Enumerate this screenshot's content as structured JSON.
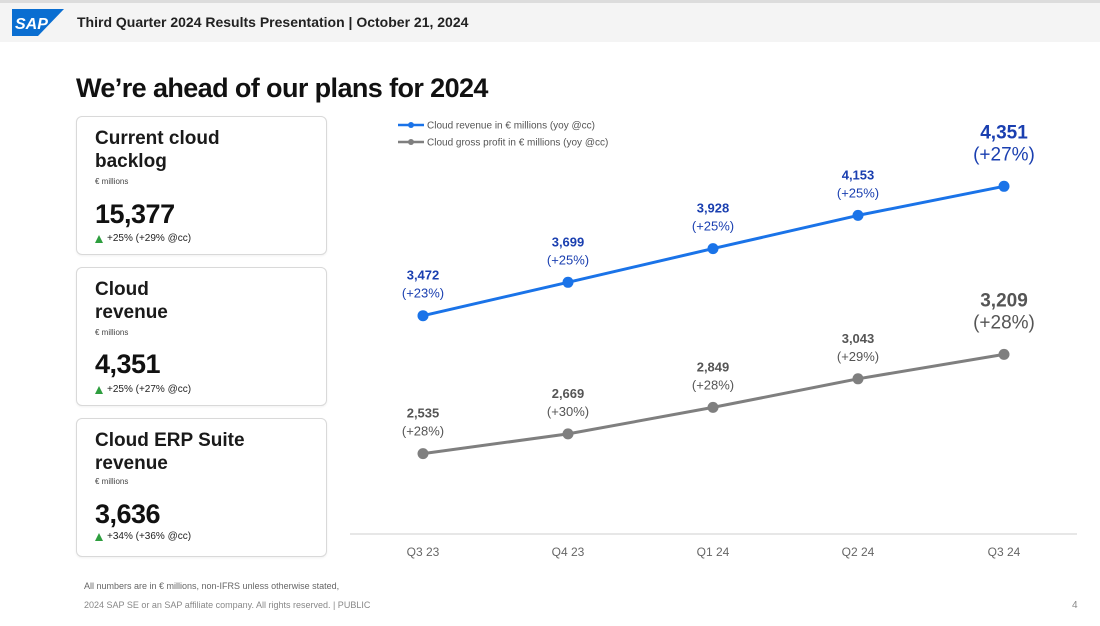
{
  "header": {
    "logo_text": "SAP",
    "title": "Third Quarter 2024 Results Presentation | October 21, 2024"
  },
  "page_title": "We’re ahead of our plans for 2024",
  "kpis": [
    {
      "label": "Current cloud backlog",
      "unit": "€ millions",
      "value": "15,377",
      "growth": "+25% (+29% @cc)"
    },
    {
      "label": "Cloud revenue",
      "unit": "€ millions",
      "value": "4,351",
      "growth": "+25% (+27% @cc)"
    },
    {
      "label": "Cloud ERP Suite revenue",
      "unit": "€ millions",
      "value": "3,636",
      "growth": "+34% (+36% @cc)"
    }
  ],
  "colors": {
    "cloud_revenue": "#1a73e8",
    "gross_profit": "#7f7f7f",
    "label_blue": "#1a3fb0",
    "growth_green": "#2e9e3f",
    "logo_blue": "#0a6ed1"
  },
  "chart_data": {
    "type": "line",
    "categories": [
      "Q3 23",
      "Q4 23",
      "Q1 24",
      "Q2 24",
      "Q3 24"
    ],
    "series": [
      {
        "name": "Cloud revenue in € millions (yoy @cc)",
        "values": [
          3472,
          3699,
          3928,
          4153,
          4351
        ],
        "value_labels": [
          "3,472",
          "3,699",
          "3,928",
          "4,153",
          "4,351"
        ],
        "growth_labels": [
          "(+23%)",
          "(+25%)",
          "(+25%)",
          "(+25%)",
          "(+27%)"
        ]
      },
      {
        "name": "Cloud gross profit in € millions (yoy @cc)",
        "values": [
          2535,
          2669,
          2849,
          3043,
          3209
        ],
        "value_labels": [
          "2,535",
          "2,669",
          "2,849",
          "3,043",
          "3,209"
        ],
        "growth_labels": [
          "(+28%)",
          "(+30%)",
          "(+28%)",
          "(+29%)",
          "(+28%)"
        ]
      }
    ],
    "legend_position": "top-left"
  },
  "footer": {
    "note": "All numbers are in € millions, non-IFRS unless otherwise stated,",
    "copyright": "2024 SAP SE or an SAP affiliate company. All rights reserved.  | PUBLIC",
    "page_number": "4"
  }
}
